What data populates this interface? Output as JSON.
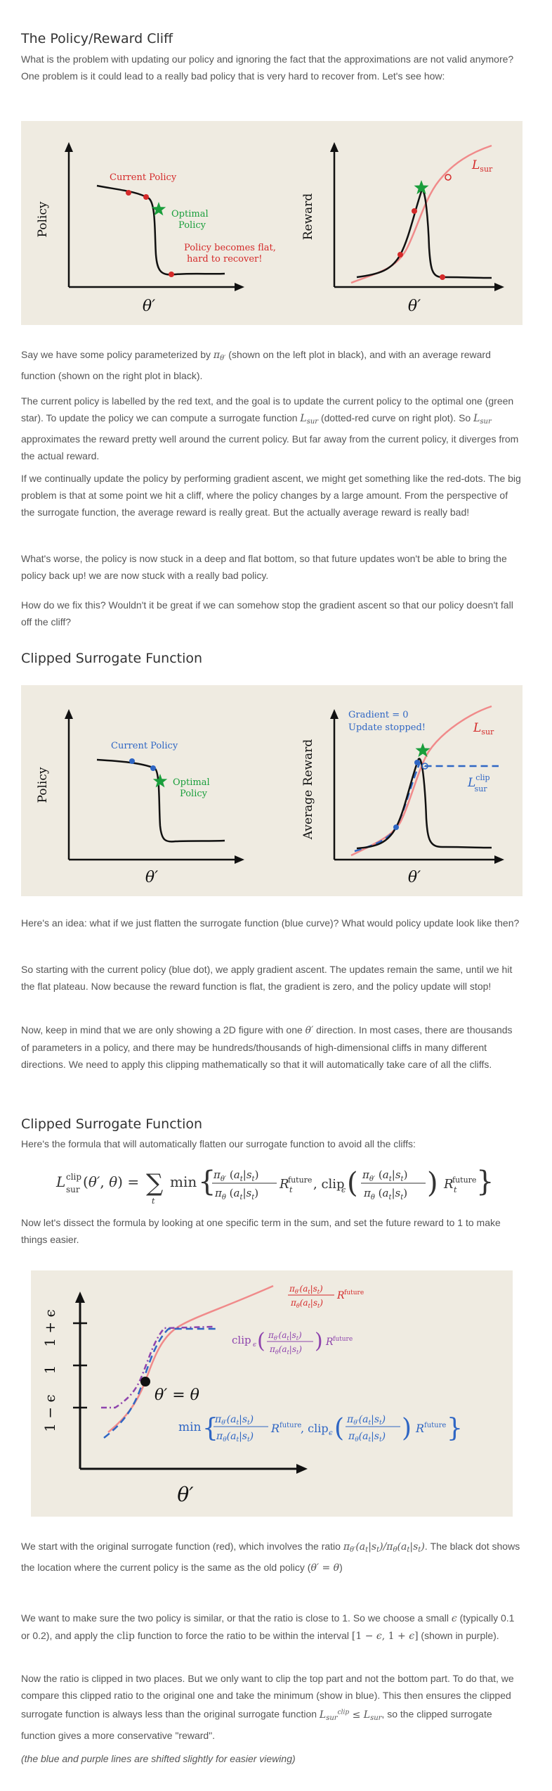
{
  "sections": {
    "cliff": {
      "title": "The Policy/Reward Cliff",
      "intro": "What is the problem with updating our policy and ignoring the fact that the approximations are not valid anymore? One problem is it could lead to a really bad policy that is very hard to recover from. Let's see how:",
      "fig": {
        "left_ylabel": "Policy",
        "left_xlabel": "θ′",
        "current_policy": "Current Policy",
        "optimal_line1": "Optimal",
        "optimal_line2": "Policy",
        "flat_line1": "Policy becomes flat,",
        "flat_line2": "hard to recover!",
        "right_ylabel": "Reward",
        "right_xlabel": "θ′",
        "lsur": "Lsur"
      },
      "p1_a": "Say we have some policy parameterized by ",
      "p1_b": " (shown on the left plot in black), and with an average reward function (shown on the right plot in black).",
      "p2_a": "The current policy is labelled by the red text, and the goal is to update the current policy to the optimal one (green star). To update the policy we can compute a surrogate function ",
      "p2_b": " (dotted-red curve on right plot). So ",
      "p2_c": " approximates the reward pretty well around the current policy. But far away from the current policy, it diverges from the actual reward.",
      "p3": "If we continually update the policy by performing gradient ascent, we might get something like the red-dots. The big problem is that at some point we hit a cliff, where the policy changes by a large amount. From the perspective of the surrogate function, the average reward is really great. But the actually average reward is really bad!",
      "p4": "What's worse, the policy is now stuck in a deep and flat bottom, so that future updates won't be able to bring the policy back up! we are now stuck with a really bad policy.",
      "p5": "How do we fix this? Wouldn't it be great if we can somehow stop the gradient ascent so that our policy doesn't fall off the cliff?"
    },
    "clipped1": {
      "title": "Clipped Surrogate Function",
      "fig": {
        "left_ylabel": "Policy",
        "left_xlabel": "θ′",
        "current_policy": "Current Policy",
        "optimal_line1": "Optimal",
        "optimal_line2": "Policy",
        "right_ylabel": "Average Reward",
        "right_xlabel": "θ′",
        "gradient": "Gradient = 0",
        "stopped": "Update stopped!",
        "lsur": "Lsur",
        "lclip": "Lclip"
      },
      "p1": "Here's an idea: what if we just flatten the surrogate function (blue curve)? What would policy update look like then?",
      "p2": "So starting with the current policy (blue dot), we apply gradient ascent. The updates remain the same, until we hit the flat plateau. Now because the reward function is flat, the gradient is zero, and the policy update will stop!",
      "p3_a": "Now, keep in mind that we are only showing a 2D figure with one ",
      "p3_b": " direction. In most cases, there are thousands of parameters in a policy, and there may be hundreds/thousands of high-dimensional cliffs in many different directions. We need to apply this clipping mathematically so that it will automatically take care of all the cliffs."
    },
    "clipped2": {
      "title": "Clipped Surrogate Function",
      "intro": "Here's the formula that will automatically flatten our surrogate function to avoid all the cliffs:",
      "p1": "Now let's dissect the formula by looking at one specific term in the sum, and set the future reward to 1 to make things easier.",
      "fig": {
        "xlabel": "θ′",
        "tick_low": "1 − ϵ",
        "tick_mid": "1",
        "tick_high": "1 + ϵ",
        "theta_eq": "θ′ = θ"
      },
      "p2_a": "We start with the original surrogate function (red), which involves the ratio ",
      "p2_b": ". The black dot shows the location where the current policy is the same as the old policy (",
      "p2_c": ")",
      "p3_a": "We want to make sure the two policy is similar, or that the ratio is close to 1. So we choose a small ",
      "p3_b": " (typically 0.1 or 0.2), and apply the ",
      "p3_c": " function to force the ratio to be within the interval ",
      "p3_d": " (shown in purple).",
      "p4_a": "Now the ratio is clipped in two places. But we only want to clip the top part and not the bottom part. To do that, we compare this clipped ratio to the original one and take the minimum (show in blue). This then ensures the clipped surrogate function is always less than the original surrogate function ",
      "p4_b": ", so the clipped surrogate function gives a more conservative \"reward\".",
      "note": "(the blue and purple lines are shifted slightly for easier viewing)"
    }
  }
}
